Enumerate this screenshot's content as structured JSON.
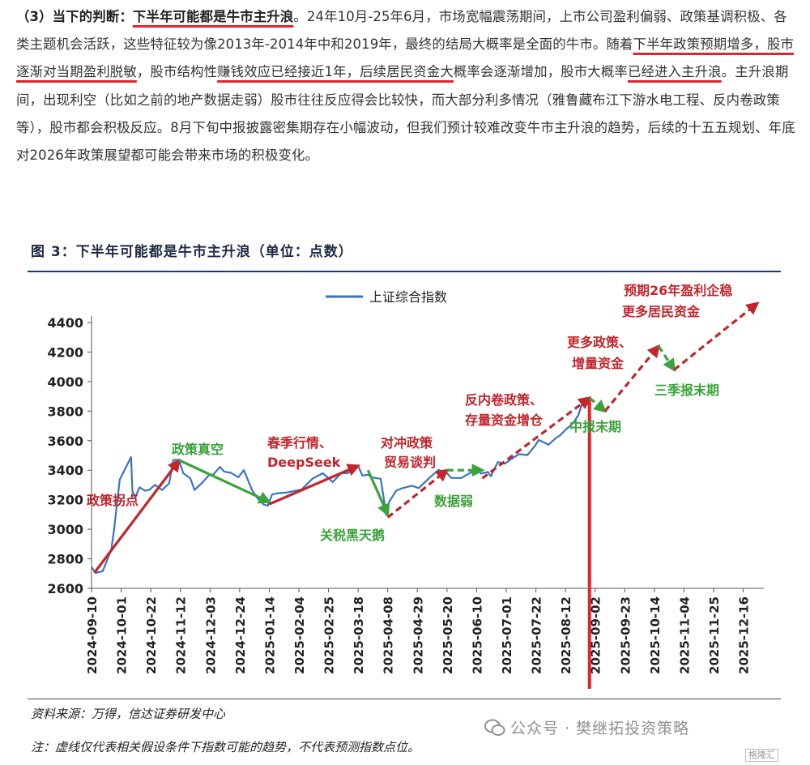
{
  "paragraph": {
    "lead": "（3）当下的判断：",
    "headline": "下半年可能都是牛市主升浪",
    "s1": "。24年10月-25年6月，市场宽幅震荡期间，上市公司盈利偏弱、政策基调积极、各类主题机会活跃，这些特征较为像2013年-2014年中和2019年，最终的结局大概率是全面的牛市。随着",
    "u1": "下半年政策预期增多，股市逐渐对当期盈利脱敏",
    "s2": "，股市结构性",
    "u2": "赚钱效应已经接近1年，后续居民资金大",
    "s3": "概率会逐渐增加，股市大概率",
    "u3": "已经进入主升浪",
    "s4": "。主升浪期间，出现利空（比如之前的地产数据走弱）股市往往反应得会比较快，而大部分利多情况（雅鲁藏布江下游水电工程、反内卷政策等），股市都会积极反应。8月下旬中报披露密集期存在小幅波动，但我们预计较难改变牛市主升浪的趋势，后续的十五五规划、年底对2026年政策展望都可能会带来市场的积极变化。"
  },
  "figure_title": "图 3：下半年可能都是牛市主升浪（单位：点数）",
  "source": "资料来源：万得，信达证券研发中心",
  "note": "注：虚线仅代表相关假设条件下指数可能的趋势，不代表预测指数点位。",
  "watermark": "公众号 · 樊继拓投资策略",
  "badge": "格隆汇",
  "colors": {
    "line": "#3a73c4",
    "red": "#c0262c",
    "green": "#3aa33a",
    "marker": "#e8222a",
    "underline": "#e8222a"
  },
  "chart_data": {
    "type": "line",
    "legend": "上证综合指数",
    "ylim": [
      2600,
      4400
    ],
    "yticks": [
      2600,
      2800,
      3000,
      3200,
      3400,
      3600,
      3800,
      4000,
      4200,
      4400
    ],
    "xticks": [
      "2024-09-10",
      "2024-10-01",
      "2024-10-22",
      "2024-11-12",
      "2024-12-03",
      "2024-12-24",
      "2025-01-14",
      "2025-02-04",
      "2025-02-25",
      "2025-03-18",
      "2025-04-08",
      "2025-04-29",
      "2025-05-20",
      "2025-06-10",
      "2025-07-01",
      "2025-07-22",
      "2025-08-12",
      "2025-09-02",
      "2025-09-23",
      "2025-10-14",
      "2025-11-04",
      "2025-11-25",
      "2025-12-16"
    ],
    "xrange": [
      "2024-09-10",
      "2025-12-26"
    ],
    "series": [
      {
        "name": "上证综合指数",
        "points": [
          [
            "2024-09-10",
            2745
          ],
          [
            "2024-09-13",
            2704
          ],
          [
            "2024-09-18",
            2717
          ],
          [
            "2024-09-24",
            2863
          ],
          [
            "2024-09-26",
            3000
          ],
          [
            "2024-09-30",
            3336
          ],
          [
            "2024-10-08",
            3489
          ],
          [
            "2024-10-09",
            3258
          ],
          [
            "2024-10-11",
            3217
          ],
          [
            "2024-10-14",
            3284
          ],
          [
            "2024-10-18",
            3261
          ],
          [
            "2024-10-21",
            3268
          ],
          [
            "2024-10-25",
            3300
          ],
          [
            "2024-10-30",
            3266
          ],
          [
            "2024-11-04",
            3310
          ],
          [
            "2024-11-07",
            3470
          ],
          [
            "2024-11-11",
            3470
          ],
          [
            "2024-11-14",
            3380
          ],
          [
            "2024-11-19",
            3346
          ],
          [
            "2024-11-22",
            3267
          ],
          [
            "2024-11-27",
            3310
          ],
          [
            "2024-12-02",
            3364
          ],
          [
            "2024-12-05",
            3368
          ],
          [
            "2024-12-10",
            3422
          ],
          [
            "2024-12-13",
            3391
          ],
          [
            "2024-12-18",
            3382
          ],
          [
            "2024-12-23",
            3352
          ],
          [
            "2024-12-27",
            3400
          ],
          [
            "2025-01-02",
            3262
          ],
          [
            "2025-01-06",
            3206
          ],
          [
            "2025-01-10",
            3168
          ],
          [
            "2025-01-13",
            3160
          ],
          [
            "2025-01-16",
            3236
          ],
          [
            "2025-01-20",
            3244
          ],
          [
            "2025-01-27",
            3250
          ],
          [
            "2025-02-06",
            3270
          ],
          [
            "2025-02-11",
            3318
          ],
          [
            "2025-02-14",
            3346
          ],
          [
            "2025-02-21",
            3379
          ],
          [
            "2025-02-28",
            3320
          ],
          [
            "2025-03-06",
            3381
          ],
          [
            "2025-03-11",
            3379
          ],
          [
            "2025-03-14",
            3419
          ],
          [
            "2025-03-18",
            3429
          ],
          [
            "2025-03-21",
            3364
          ],
          [
            "2025-03-25",
            3369
          ],
          [
            "2025-03-28",
            3351
          ],
          [
            "2025-04-03",
            3342
          ],
          [
            "2025-04-07",
            3096
          ],
          [
            "2025-04-09",
            3186
          ],
          [
            "2025-04-14",
            3262
          ],
          [
            "2025-04-18",
            3277
          ],
          [
            "2025-04-25",
            3295
          ],
          [
            "2025-04-30",
            3279
          ],
          [
            "2025-05-07",
            3343
          ],
          [
            "2025-05-14",
            3403
          ],
          [
            "2025-05-20",
            3380
          ],
          [
            "2025-05-23",
            3348
          ],
          [
            "2025-05-30",
            3347
          ],
          [
            "2025-06-06",
            3385
          ],
          [
            "2025-06-11",
            3402
          ],
          [
            "2025-06-13",
            3377
          ],
          [
            "2025-06-18",
            3388
          ],
          [
            "2025-06-20",
            3359
          ],
          [
            "2025-06-25",
            3455
          ],
          [
            "2025-06-30",
            3444
          ],
          [
            "2025-07-04",
            3472
          ],
          [
            "2025-07-10",
            3509
          ],
          [
            "2025-07-16",
            3503
          ],
          [
            "2025-07-21",
            3560
          ],
          [
            "2025-07-24",
            3605
          ],
          [
            "2025-07-31",
            3573
          ],
          [
            "2025-08-05",
            3617
          ],
          [
            "2025-08-08",
            3635
          ],
          [
            "2025-08-13",
            3683
          ],
          [
            "2025-08-15",
            3697
          ],
          [
            "2025-08-18",
            3728
          ],
          [
            "2025-08-21",
            3771
          ],
          [
            "2025-08-25",
            3883
          ],
          [
            "2025-08-28",
            3843
          ],
          [
            "2025-08-29",
            3857
          ]
        ]
      }
    ],
    "arrows": [
      {
        "style": "solid",
        "color": "red",
        "from": [
          "2024-09-12",
          2705
        ],
        "to": [
          "2024-11-11",
          3465
        ]
      },
      {
        "style": "solid",
        "color": "green",
        "from": [
          "2024-11-11",
          3468
        ],
        "to": [
          "2025-01-14",
          3185
        ]
      },
      {
        "style": "solid",
        "color": "red",
        "from": [
          "2025-01-14",
          3170
        ],
        "to": [
          "2025-03-18",
          3430
        ]
      },
      {
        "style": "solid",
        "color": "green",
        "from": [
          "2025-03-25",
          3400
        ],
        "to": [
          "2025-04-08",
          3100
        ]
      },
      {
        "style": "dashed",
        "color": "red",
        "from": [
          "2025-04-08",
          3080
        ],
        "to": [
          "2025-05-20",
          3400
        ]
      },
      {
        "style": "dashed",
        "color": "green",
        "from": [
          "2025-05-20",
          3400
        ],
        "to": [
          "2025-06-14",
          3400
        ]
      },
      {
        "style": "dashed",
        "color": "red",
        "from": [
          "2025-06-14",
          3345
        ],
        "to": [
          "2025-08-29",
          3890
        ]
      },
      {
        "style": "dashed",
        "color": "green",
        "from": [
          "2025-08-29",
          3890
        ],
        "to": [
          "2025-09-09",
          3800
        ]
      },
      {
        "style": "dashed",
        "color": "red",
        "from": [
          "2025-09-09",
          3800
        ],
        "to": [
          "2025-10-17",
          4240
        ]
      },
      {
        "style": "dashed",
        "color": "green",
        "from": [
          "2025-10-17",
          4240
        ],
        "to": [
          "2025-10-28",
          4080
        ]
      },
      {
        "style": "dashed",
        "color": "red",
        "from": [
          "2025-10-28",
          4080
        ],
        "to": [
          "2025-12-26",
          4530
        ]
      }
    ],
    "marker": {
      "date": "2025-08-29",
      "label": "中报末期"
    },
    "annotations": [
      {
        "text": "政策拐点",
        "color": "red"
      },
      {
        "text": "政策真空",
        "color": "green"
      },
      {
        "text": "春季行情、",
        "color": "red"
      },
      {
        "text": "DeepSeek",
        "color": "red"
      },
      {
        "text": "关税黑天鹅",
        "color": "green"
      },
      {
        "text": "对冲政策",
        "color": "red"
      },
      {
        "text": "贸易谈判",
        "color": "red"
      },
      {
        "text": "数据弱",
        "color": "green"
      },
      {
        "text": "反内卷政策、",
        "color": "red"
      },
      {
        "text": "存量资金增仓",
        "color": "red"
      },
      {
        "text": "中报末期",
        "color": "green"
      },
      {
        "text": "更多政策、",
        "color": "red"
      },
      {
        "text": "增量资金",
        "color": "red"
      },
      {
        "text": "三季报末期",
        "color": "green"
      },
      {
        "text": "预期26年盈利企稳",
        "color": "red"
      },
      {
        "text": "更多居民资金",
        "color": "red"
      }
    ]
  }
}
